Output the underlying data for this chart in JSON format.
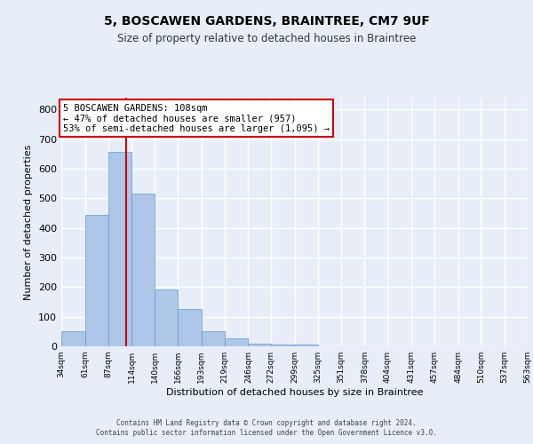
{
  "title": "5, BOSCAWEN GARDENS, BRAINTREE, CM7 9UF",
  "subtitle": "Size of property relative to detached houses in Braintree",
  "xlabel": "Distribution of detached houses by size in Braintree",
  "ylabel": "Number of detached properties",
  "bar_edges": [
    34,
    61,
    87,
    114,
    140,
    166,
    193,
    219,
    246,
    272,
    299,
    325,
    351,
    378,
    404,
    431,
    457,
    484,
    510,
    537,
    563
  ],
  "bar_heights": [
    50,
    443,
    657,
    515,
    193,
    125,
    52,
    27,
    10,
    7,
    5,
    0,
    0,
    0,
    0,
    0,
    0,
    0,
    0,
    0
  ],
  "bar_color": "#aec6e8",
  "bar_edge_color": "#5b9bd5",
  "ylim": [
    0,
    840
  ],
  "yticks": [
    0,
    100,
    200,
    300,
    400,
    500,
    600,
    700,
    800
  ],
  "property_size": 108,
  "red_line_color": "#cc0000",
  "annotation_text": "5 BOSCAWEN GARDENS: 108sqm\n← 47% of detached houses are smaller (957)\n53% of semi-detached houses are larger (1,095) →",
  "annotation_box_color": "#ffffff",
  "annotation_box_edge_color": "#cc0000",
  "background_color": "#e8eef8",
  "grid_color": "#ffffff",
  "footer_line1": "Contains HM Land Registry data © Crown copyright and database right 2024.",
  "footer_line2": "Contains public sector information licensed under the Open Government Licence v3.0."
}
